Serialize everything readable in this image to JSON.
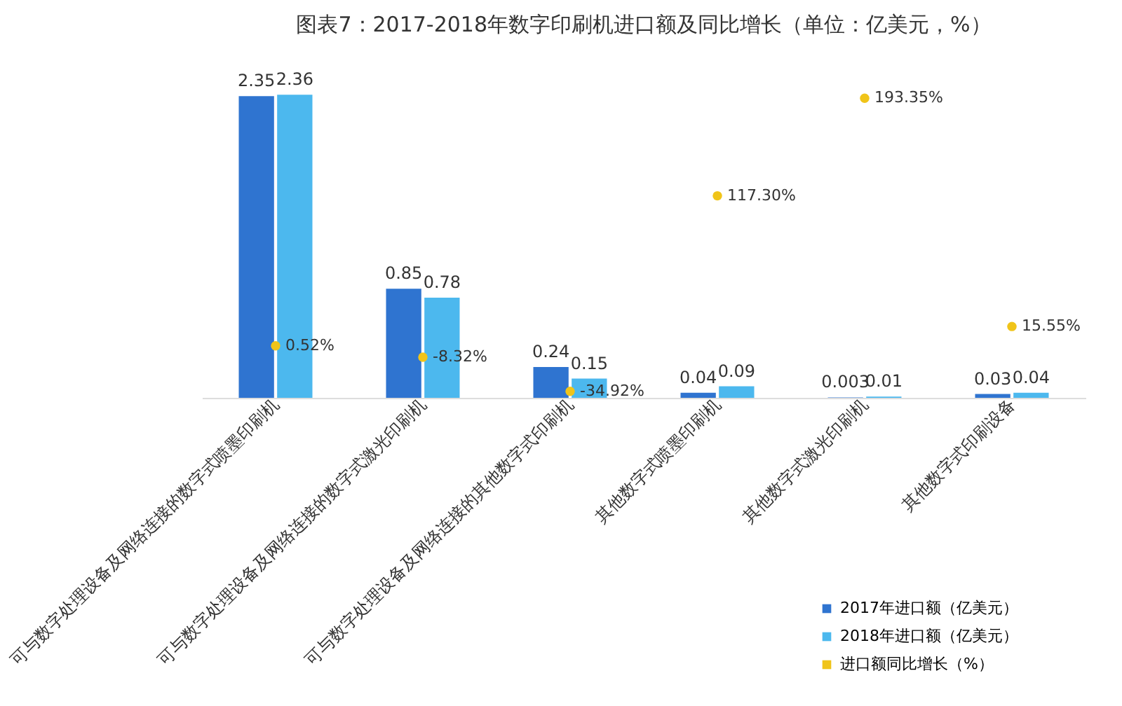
{
  "chart_data": {
    "type": "bar",
    "title": "图表7：2017-2018年数字印刷机进口额及同比增长（单位：亿美元，%）",
    "categories": [
      "可与数字处理设备及网络连接的数字式喷墨印刷机",
      "可与数字处理设备及网络连接的数字式激光印刷机",
      "可与数字处理设备及网络连接的其他数字式印刷机",
      "其他数字式喷墨印刷机",
      "其他数字式激光印刷机",
      "其他数字式印刷设备"
    ],
    "series": [
      {
        "name": "2017年进口额（亿美元）",
        "color": "#2f74d0",
        "values": [
          2.35,
          0.85,
          0.24,
          0.04,
          0.003,
          0.03
        ]
      },
      {
        "name": "2018年进口额（亿美元）",
        "color": "#4cb8ee",
        "values": [
          2.36,
          0.78,
          0.15,
          0.09,
          0.01,
          0.04
        ]
      },
      {
        "name": "进口额同比增长（%）",
        "type": "scatter",
        "axis": "y2",
        "color": "#f0c419",
        "values": [
          0.52,
          -8.32,
          -34.92,
          117.3,
          193.35,
          15.55
        ],
        "value_labels": [
          "0.52%",
          "-8.32%",
          "-34.92%",
          "117.30%",
          "193.35%",
          "15.55%"
        ]
      }
    ],
    "tick_labels": "x",
    "data_labels": true,
    "legend": "bottom right",
    "marker": "circle"
  }
}
